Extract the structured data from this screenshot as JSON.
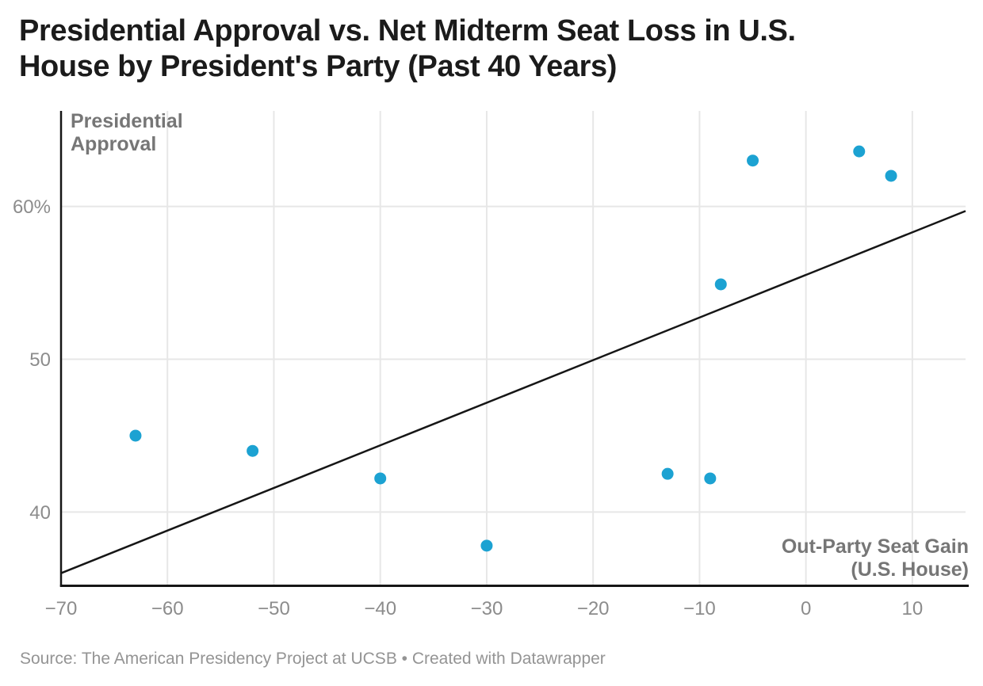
{
  "footer": {
    "source": "Source: The American Presidency Project at UCSB • Created with Datawrapper"
  },
  "chart_data": {
    "type": "scatter",
    "title": "Presidential Approval vs. Net Midterm Seat Loss in U.S.\nHouse by President's Party (Past 40 Years)",
    "y_axis_label": "Presidential\nApproval",
    "x_axis_label": "Out-Party Seat Gain\n(U.S. House)",
    "xlim": [
      -70,
      15
    ],
    "ylim": [
      35.2,
      66.25
    ],
    "x_ticks": [
      -70,
      -60,
      -50,
      -40,
      -30,
      -20,
      -10,
      0,
      10
    ],
    "x_tick_labels": [
      "−70",
      "−60",
      "−50",
      "−40",
      "−30",
      "−20",
      "−10",
      "0",
      "10"
    ],
    "y_ticks": [
      40,
      50,
      60
    ],
    "y_tick_labels": [
      "40",
      "50",
      "60%"
    ],
    "grid": true,
    "points": [
      {
        "x": -63,
        "y": 45.0
      },
      {
        "x": -52,
        "y": 44.0
      },
      {
        "x": -40,
        "y": 42.2
      },
      {
        "x": -30,
        "y": 37.8
      },
      {
        "x": -13,
        "y": 42.5
      },
      {
        "x": -9,
        "y": 42.2
      },
      {
        "x": -8,
        "y": 54.9
      },
      {
        "x": -5,
        "y": 63.0
      },
      {
        "x": 5,
        "y": 63.6
      },
      {
        "x": 8,
        "y": 62.0
      }
    ],
    "trendline": {
      "x1": -70,
      "y1": 36.0,
      "x2": 15,
      "y2": 59.7
    },
    "colors": {
      "point": "#1CA2D2",
      "trend": "#161616",
      "axis": "#161616",
      "grid": "#e7e7e7",
      "tick_label": "#8c8c8c",
      "axis_title": "#767676",
      "title": "#1b1b1b",
      "source": "#949494"
    }
  }
}
